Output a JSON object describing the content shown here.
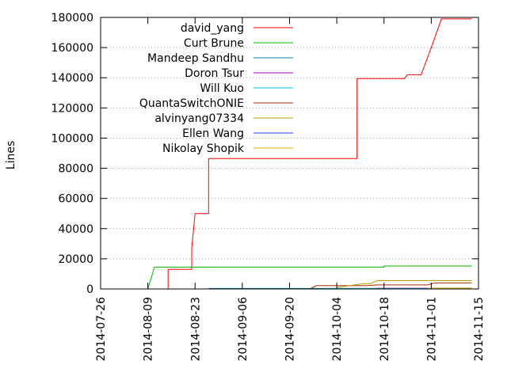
{
  "chart_data": {
    "type": "line",
    "title": "",
    "xlabel": "",
    "ylabel": "Lines",
    "xlim": [
      "2014-07-26",
      "2014-11-15"
    ],
    "ylim": [
      0,
      180000
    ],
    "x_ticks": [
      "2014-07-26",
      "2014-08-09",
      "2014-08-23",
      "2014-09-06",
      "2014-09-20",
      "2014-10-04",
      "2014-10-18",
      "2014-11-01",
      "2014-11-15"
    ],
    "y_ticks": [
      0,
      20000,
      40000,
      60000,
      80000,
      100000,
      120000,
      140000,
      160000,
      180000
    ],
    "y_tick_labels": [
      "0",
      "20000",
      "40000",
      "60000",
      "80000",
      "100000",
      "120000",
      "140000",
      "160000",
      "180000"
    ],
    "grid": "horizontal dotted",
    "legend_position": "top-left",
    "series": [
      {
        "name": "david_yang",
        "color": "#ff0000",
        "points": [
          [
            "2014-08-15",
            0
          ],
          [
            "2014-08-15",
            13000
          ],
          [
            "2014-08-22",
            13000
          ],
          [
            "2014-08-22",
            27000
          ],
          [
            "2014-08-23",
            50000
          ],
          [
            "2014-08-27",
            50000
          ],
          [
            "2014-08-27",
            86500
          ],
          [
            "2014-10-10",
            86500
          ],
          [
            "2014-10-10",
            139500
          ],
          [
            "2014-10-24",
            139500
          ],
          [
            "2014-10-25",
            142000
          ],
          [
            "2014-10-29",
            142000
          ],
          [
            "2014-11-01",
            160000
          ],
          [
            "2014-11-04",
            179000
          ],
          [
            "2014-11-13",
            179000
          ]
        ]
      },
      {
        "name": "Curt Brune",
        "color": "#00b000",
        "points": [
          [
            "2014-08-09",
            0
          ],
          [
            "2014-08-11",
            14500
          ],
          [
            "2014-10-18",
            14500
          ],
          [
            "2014-10-18",
            15200
          ],
          [
            "2014-11-13",
            15200
          ]
        ]
      },
      {
        "name": "Mandeep Sandhu",
        "color": "#0080a0",
        "points": [
          [
            "2014-08-27",
            300
          ],
          [
            "2014-11-13",
            400
          ]
        ]
      },
      {
        "name": "Doron Tsur",
        "color": "#a000a0",
        "points": [
          [
            "2014-10-16",
            0
          ],
          [
            "2014-10-16",
            400
          ],
          [
            "2014-11-13",
            400
          ]
        ]
      },
      {
        "name": "Will Kuo",
        "color": "#00c0e0",
        "points": [
          [
            "2014-09-30",
            0
          ],
          [
            "2014-09-30",
            200
          ],
          [
            "2014-11-13",
            200
          ]
        ]
      },
      {
        "name": "QuantaSwitchONIE",
        "color": "#a03000",
        "points": [
          [
            "2014-09-26",
            0
          ],
          [
            "2014-09-28",
            2200
          ],
          [
            "2014-10-13",
            2200
          ],
          [
            "2014-10-16",
            2700
          ],
          [
            "2014-10-31",
            2700
          ],
          [
            "2014-11-02",
            4000
          ],
          [
            "2014-11-13",
            4000
          ]
        ]
      },
      {
        "name": "alvinyang07334",
        "color": "#b0a000",
        "points": [
          [
            "2014-10-04",
            1000
          ],
          [
            "2014-10-12",
            3500
          ],
          [
            "2014-10-14",
            3500
          ],
          [
            "2014-10-16",
            5500
          ],
          [
            "2014-11-13",
            5500
          ]
        ]
      },
      {
        "name": "Ellen Wang",
        "color": "#3030ff",
        "points": [
          [
            "2014-10-31",
            500
          ],
          [
            "2014-11-13",
            600
          ]
        ]
      },
      {
        "name": "Nikolay Shopik",
        "color": "#e0b000",
        "points": [
          [
            "2014-10-31",
            500
          ],
          [
            "2014-11-13",
            500
          ]
        ]
      }
    ]
  }
}
